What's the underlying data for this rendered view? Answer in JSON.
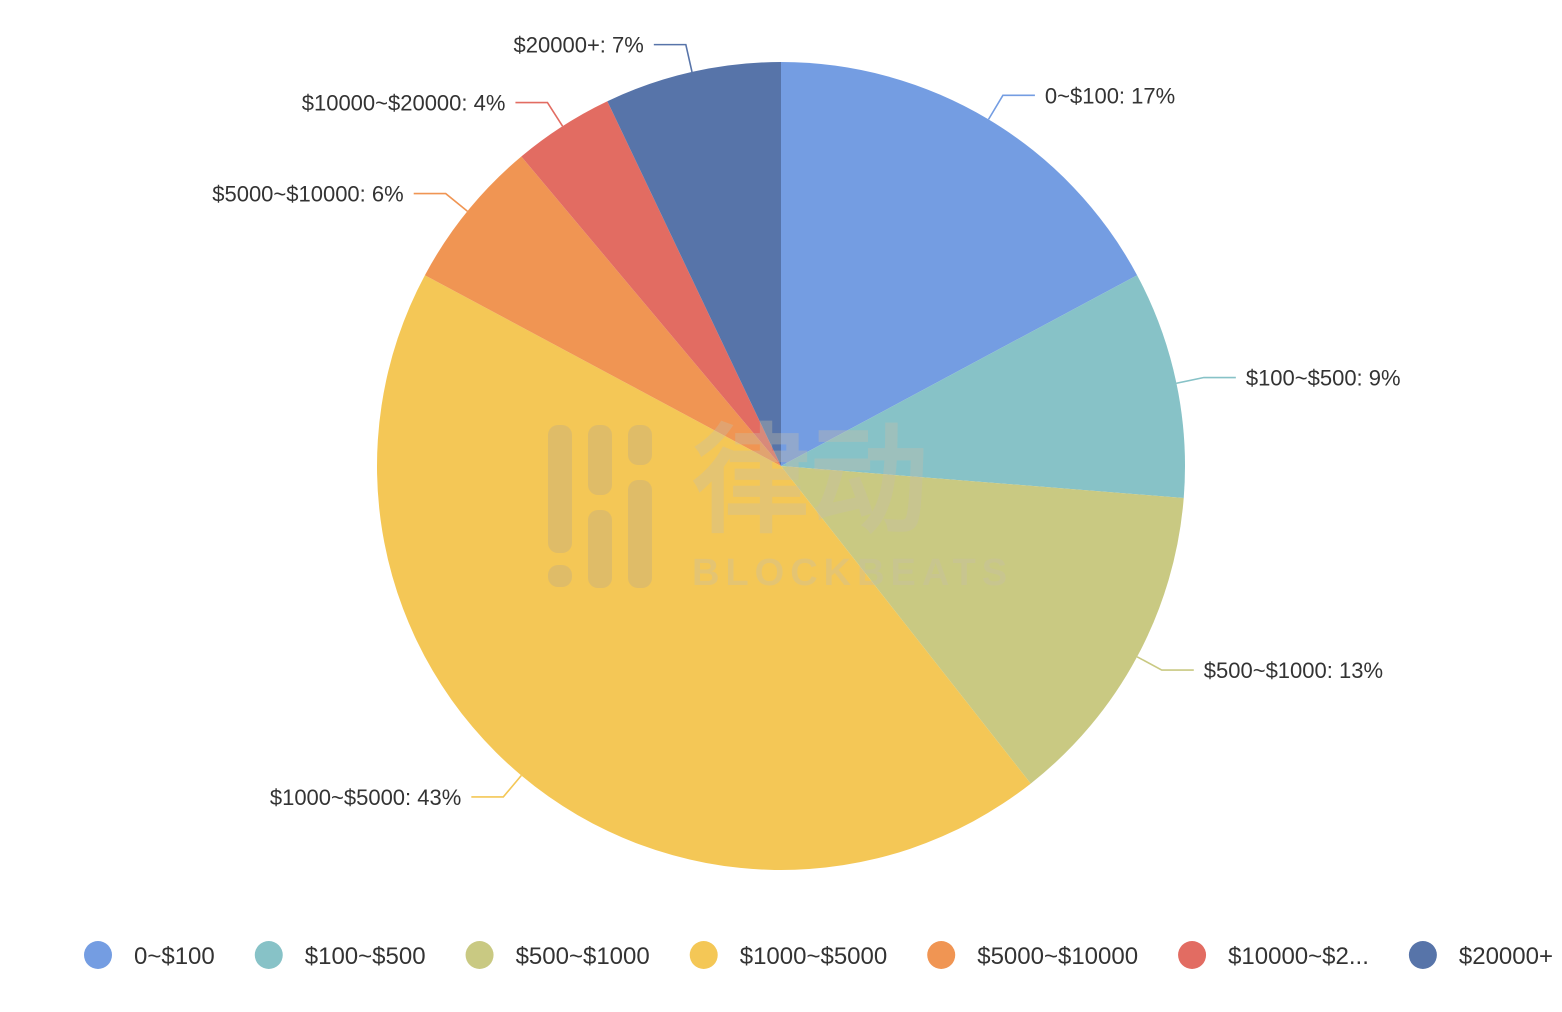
{
  "chart_data": {
    "type": "pie",
    "title": "",
    "start_angle_deg": 90,
    "direction": "clockwise",
    "legend_position": "bottom",
    "slices": [
      {
        "name": "0~$100",
        "legend_label": "0~$100",
        "value": 17,
        "label": "0~$100: 17%",
        "color": "#749DE2"
      },
      {
        "name": "$100~$500",
        "legend_label": "$100~$500",
        "value": 9,
        "label": "$100~$500: 9%",
        "color": "#87C2C7"
      },
      {
        "name": "$500~$1000",
        "legend_label": "$500~$1000",
        "value": 13,
        "label": "$500~$1000: 13%",
        "color": "#C9C982"
      },
      {
        "name": "$1000~$5000",
        "legend_label": "$1000~$5000",
        "value": 43,
        "label": "$1000~$5000: 43%",
        "color": "#F4C756"
      },
      {
        "name": "$5000~$10000",
        "legend_label": "$5000~$10000",
        "value": 6,
        "label": "$5000~$10000: 6%",
        "color": "#F09553"
      },
      {
        "name": "$10000~$20000",
        "legend_label": "$10000~$2...",
        "value": 4,
        "label": "$10000~$20000: 4%",
        "color": "#E26C62"
      },
      {
        "name": "$20000+",
        "legend_label": "$20000+",
        "value": 7,
        "label": "$20000+: 7%",
        "color": "#5774A9"
      }
    ]
  },
  "watermark": {
    "text_cn": "律动",
    "text_en": "BLOCKBEATS"
  }
}
